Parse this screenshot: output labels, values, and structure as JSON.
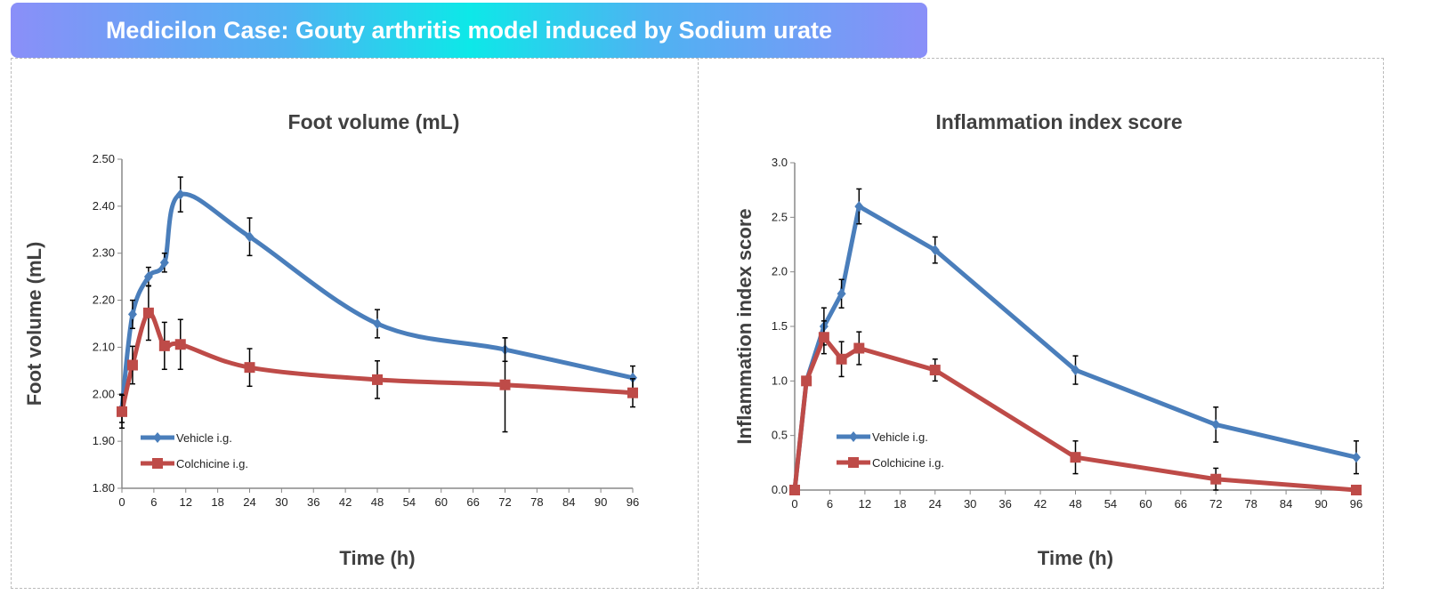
{
  "header": {
    "title": "Medicilon Case: Gouty arthritis model induced by Sodium urate"
  },
  "colors": {
    "vehicle": "#4a7ebb",
    "colchicine": "#be4b48",
    "error_bar": "#000000",
    "header_gradient": [
      "#8a8ff8",
      "#0de8e8"
    ]
  },
  "chart_data": [
    {
      "type": "line",
      "title": "Foot volume (mL)",
      "xlabel": "Time (h)",
      "ylabel": "Foot volume (mL)",
      "xlim": [
        0,
        96
      ],
      "ylim": [
        1.8,
        2.5
      ],
      "xticks": [
        0,
        6,
        12,
        18,
        24,
        30,
        36,
        42,
        48,
        54,
        60,
        66,
        72,
        78,
        84,
        90,
        96
      ],
      "yticks": [
        "1.80",
        "1.90",
        "2.00",
        "2.10",
        "2.20",
        "2.30",
        "2.40",
        "2.50"
      ],
      "smooth": true,
      "legend_position": "bottom-left",
      "grid": false,
      "series": [
        {
          "name": "Vehicle i.g.",
          "marker": "diamond",
          "x": [
            0,
            2,
            5,
            8,
            11,
            24,
            48,
            72,
            96
          ],
          "y": [
            1.97,
            2.17,
            2.25,
            2.28,
            2.425,
            2.335,
            2.15,
            2.095,
            2.035
          ],
          "err": [
            0.03,
            0.03,
            0.02,
            0.02,
            0.037,
            0.04,
            0.03,
            0.025,
            0.025
          ]
        },
        {
          "name": "Colchicine i.g.",
          "marker": "square",
          "x": [
            0,
            2,
            5,
            8,
            11,
            24,
            48,
            72,
            96
          ],
          "y": [
            1.963,
            2.062,
            2.173,
            2.103,
            2.106,
            2.057,
            2.031,
            2.02,
            2.003
          ],
          "err": [
            0.035,
            0.04,
            0.058,
            0.05,
            0.053,
            0.04,
            0.04,
            0.1,
            0.03
          ]
        }
      ]
    },
    {
      "type": "line",
      "title": "Inflammation index score",
      "xlabel": "Time (h)",
      "ylabel": "Inflammation index score",
      "xlim": [
        0,
        96
      ],
      "ylim": [
        0,
        3
      ],
      "xticks": [
        0,
        6,
        12,
        18,
        24,
        30,
        36,
        42,
        48,
        54,
        60,
        66,
        72,
        78,
        84,
        90,
        96
      ],
      "yticks": [
        "0.0",
        "0.5",
        "1.0",
        "1.5",
        "2.0",
        "2.5",
        "3.0"
      ],
      "smooth": false,
      "legend_position": "bottom-left",
      "grid": false,
      "series": [
        {
          "name": "Vehicle i.g.",
          "marker": "diamond",
          "x": [
            0,
            2,
            5,
            8,
            11,
            24,
            48,
            72,
            96
          ],
          "y": [
            0,
            1.0,
            1.5,
            1.8,
            2.6,
            2.2,
            1.1,
            0.6,
            0.3
          ],
          "err": [
            0,
            0,
            0.17,
            0.13,
            0.16,
            0.12,
            0.13,
            0.16,
            0.15
          ]
        },
        {
          "name": "Colchicine i.g.",
          "marker": "square",
          "x": [
            0,
            2,
            5,
            8,
            11,
            24,
            48,
            72,
            96
          ],
          "y": [
            0,
            1.0,
            1.4,
            1.2,
            1.3,
            1.1,
            0.3,
            0.1,
            0
          ],
          "err": [
            0,
            0,
            0.15,
            0.16,
            0.15,
            0.1,
            0.15,
            0.1,
            0
          ]
        }
      ]
    }
  ]
}
